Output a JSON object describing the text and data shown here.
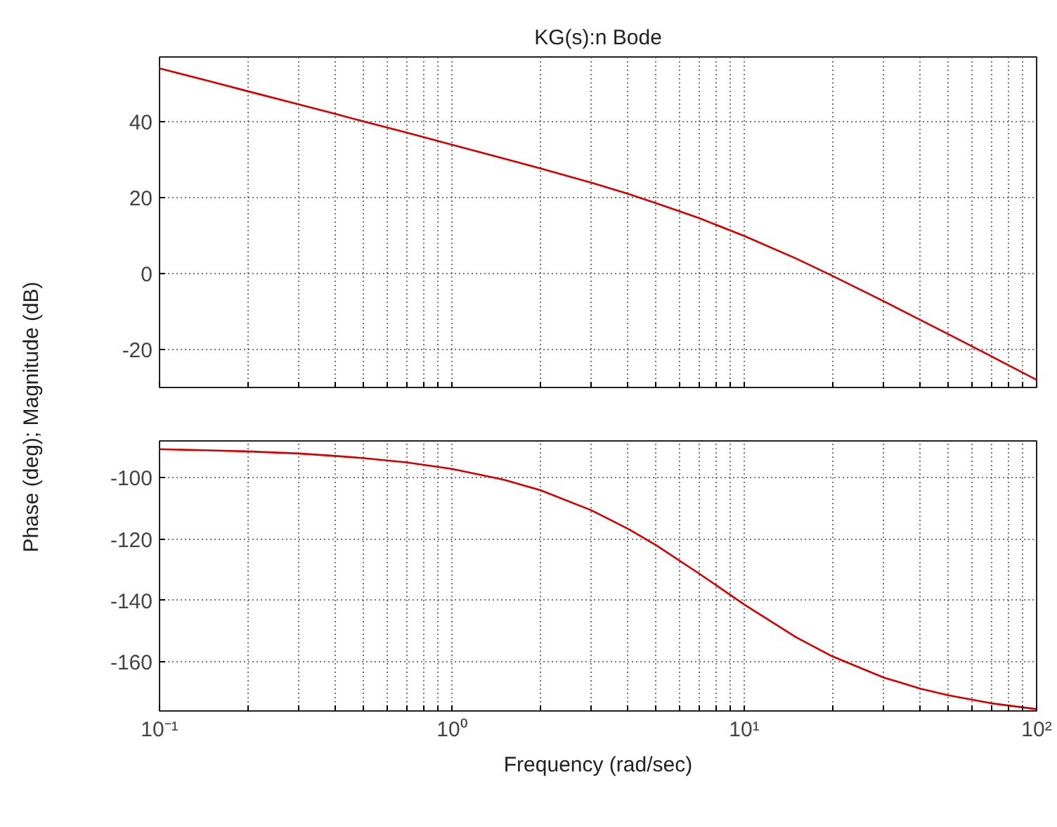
{
  "chart_data": [
    {
      "type": "line",
      "title": "KG(s):n Bode",
      "ylabel": "Phase (deg); Magnitude (dB)",
      "log": "x",
      "grid": true,
      "tick_labels": "y",
      "line_style": "solid",
      "x": [
        0.1,
        0.15,
        0.2,
        0.3,
        0.4,
        0.5,
        0.7,
        1,
        1.5,
        2,
        3,
        4,
        5,
        7,
        10,
        15,
        20,
        30,
        40,
        50,
        70,
        100
      ],
      "series": [
        {
          "color": "#d40000",
          "values": [
            54.0,
            50.5,
            48.0,
            44.5,
            42.0,
            40.0,
            37.1,
            33.9,
            30.3,
            27.7,
            23.9,
            21.0,
            18.5,
            14.6,
            9.9,
            4.0,
            -0.6,
            -7.3,
            -12.2,
            -16.0,
            -21.8,
            -28.0
          ]
        }
      ],
      "xlim": [
        0.1,
        100
      ],
      "xticks": [
        {
          "value": 0.1,
          "label": null
        },
        {
          "value": 0.2,
          "label": null
        },
        {
          "value": 0.3,
          "label": null
        },
        {
          "value": 0.4,
          "label": null
        },
        {
          "value": 0.5,
          "label": null
        },
        {
          "value": 0.6,
          "label": null
        },
        {
          "value": 0.7,
          "label": null
        },
        {
          "value": 0.8,
          "label": null
        },
        {
          "value": 0.9,
          "label": null
        },
        {
          "value": 1,
          "label": null
        },
        {
          "value": 2,
          "label": null
        },
        {
          "value": 3,
          "label": null
        },
        {
          "value": 4,
          "label": null
        },
        {
          "value": 5,
          "label": null
        },
        {
          "value": 6,
          "label": null
        },
        {
          "value": 7,
          "label": null
        },
        {
          "value": 8,
          "label": null
        },
        {
          "value": 9,
          "label": null
        },
        {
          "value": 10,
          "label": null
        },
        {
          "value": 20,
          "label": null
        },
        {
          "value": 30,
          "label": null
        },
        {
          "value": 40,
          "label": null
        },
        {
          "value": 50,
          "label": null
        },
        {
          "value": 60,
          "label": null
        },
        {
          "value": 70,
          "label": null
        },
        {
          "value": 80,
          "label": null
        },
        {
          "value": 90,
          "label": null
        },
        {
          "value": 100,
          "label": null
        }
      ],
      "ylim": [
        -30,
        57
      ],
      "yticks": [
        -20,
        0,
        20,
        40
      ]
    },
    {
      "type": "line",
      "xlabel": "Frequency (rad/sec)",
      "log": "x",
      "grid": true,
      "line_style": "solid",
      "x": [
        0.1,
        0.15,
        0.2,
        0.3,
        0.4,
        0.5,
        0.7,
        1,
        1.5,
        2,
        3,
        4,
        5,
        7,
        10,
        15,
        20,
        30,
        40,
        50,
        70,
        100
      ],
      "series": [
        {
          "color": "#d40000",
          "values": [
            -90.7,
            -91.1,
            -91.4,
            -92.1,
            -92.9,
            -93.6,
            -95.0,
            -97.1,
            -100.6,
            -104.0,
            -110.6,
            -116.6,
            -122.0,
            -131.2,
            -141.3,
            -151.9,
            -158.2,
            -165.1,
            -168.7,
            -170.9,
            -173.5,
            -175.4
          ]
        }
      ],
      "xlim": [
        0.1,
        100
      ],
      "xticks": [
        {
          "value": 0.1,
          "label": "10⁻¹"
        },
        {
          "value": 0.2,
          "label": null
        },
        {
          "value": 0.3,
          "label": null
        },
        {
          "value": 0.4,
          "label": null
        },
        {
          "value": 0.5,
          "label": null
        },
        {
          "value": 0.6,
          "label": null
        },
        {
          "value": 0.7,
          "label": null
        },
        {
          "value": 0.8,
          "label": null
        },
        {
          "value": 0.9,
          "label": null
        },
        {
          "value": 1,
          "label": "10⁰"
        },
        {
          "value": 2,
          "label": null
        },
        {
          "value": 3,
          "label": null
        },
        {
          "value": 4,
          "label": null
        },
        {
          "value": 5,
          "label": null
        },
        {
          "value": 6,
          "label": null
        },
        {
          "value": 7,
          "label": null
        },
        {
          "value": 8,
          "label": null
        },
        {
          "value": 9,
          "label": null
        },
        {
          "value": 10,
          "label": "10¹"
        },
        {
          "value": 20,
          "label": null
        },
        {
          "value": 30,
          "label": null
        },
        {
          "value": 40,
          "label": null
        },
        {
          "value": 50,
          "label": null
        },
        {
          "value": 60,
          "label": null
        },
        {
          "value": 70,
          "label": null
        },
        {
          "value": 80,
          "label": null
        },
        {
          "value": 90,
          "label": null
        },
        {
          "value": 100,
          "label": "10²"
        }
      ],
      "ylim": [
        -176,
        -88
      ],
      "yticks": [
        -160,
        -140,
        -120,
        -100
      ]
    }
  ]
}
